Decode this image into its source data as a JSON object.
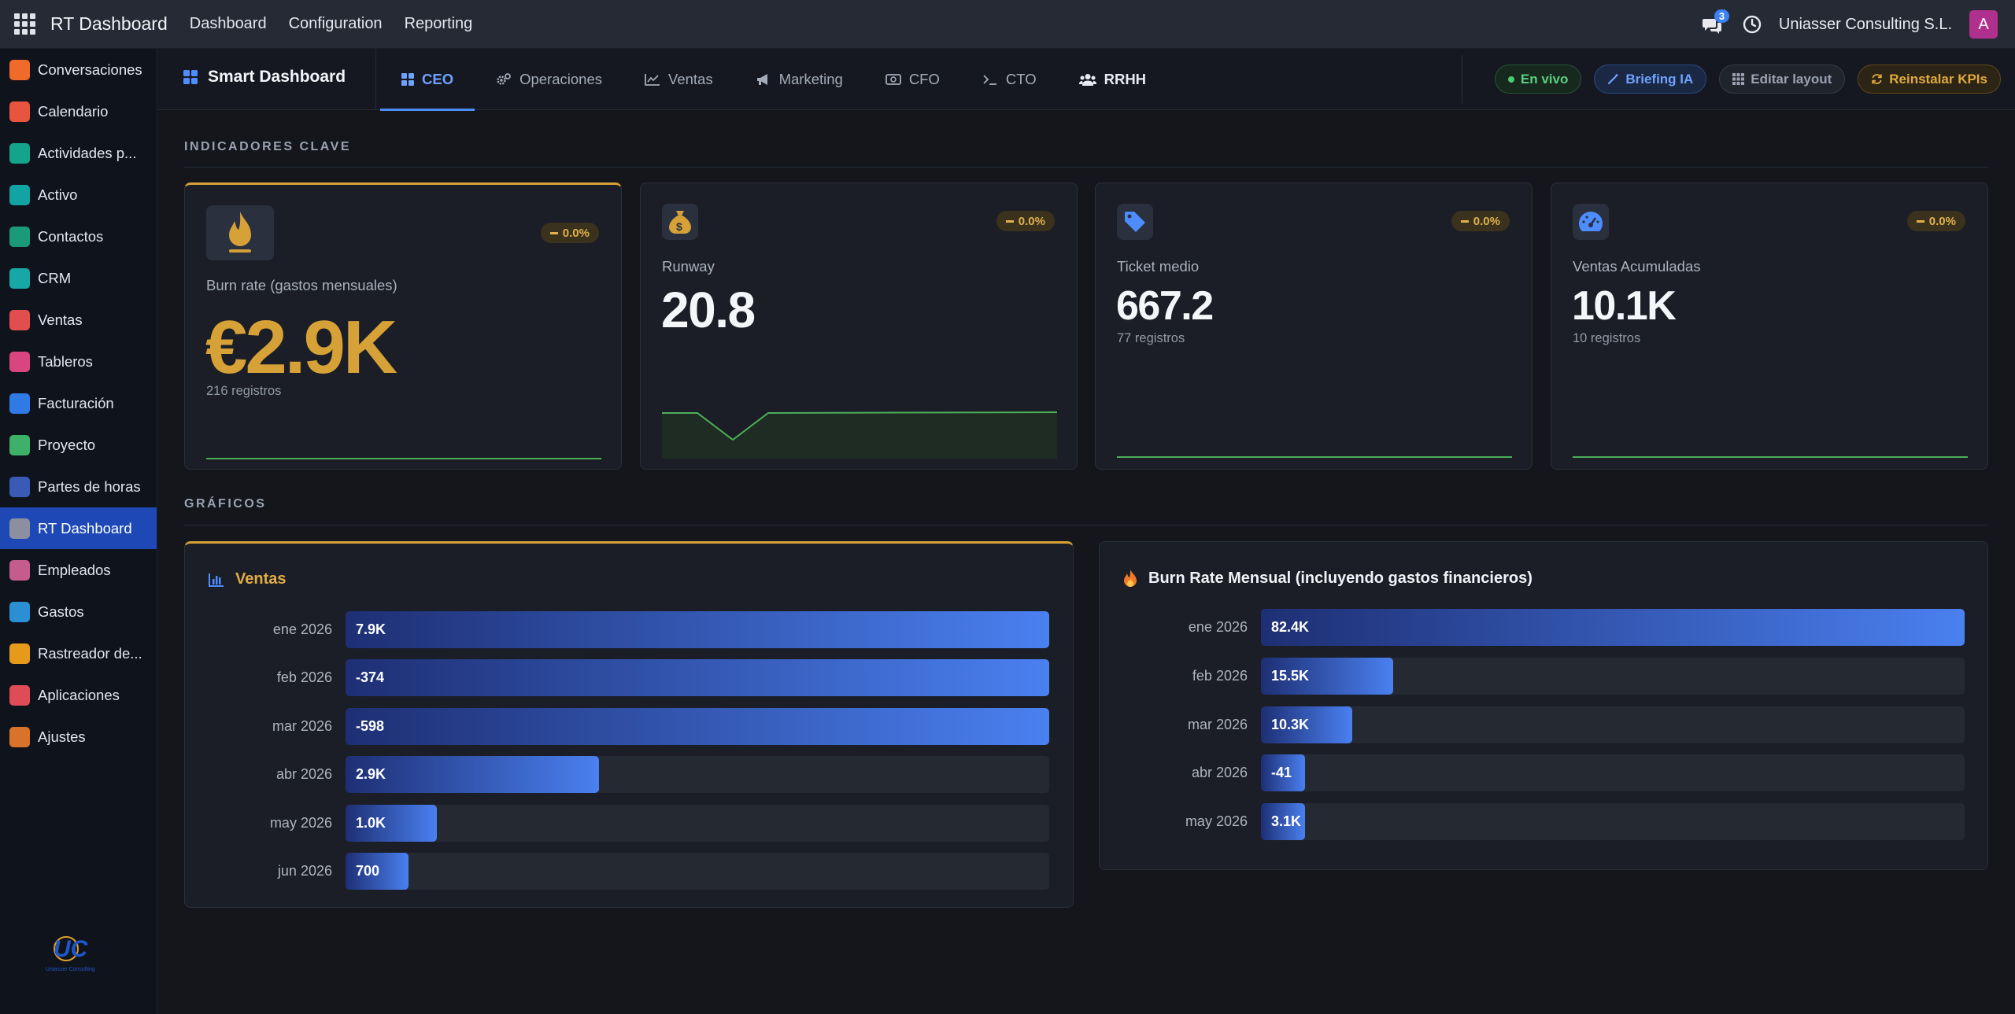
{
  "topbar": {
    "app_title": "RT Dashboard",
    "nav": [
      "Dashboard",
      "Configuration",
      "Reporting"
    ],
    "chat_count": "3",
    "company": "Uniasser Consulting S.L.",
    "avatar_letter": "A"
  },
  "sidebar": {
    "items": [
      {
        "label": "Conversaciones",
        "icon": "conversations-icon",
        "color": "#f06a2a"
      },
      {
        "label": "Calendario",
        "icon": "calendar-icon",
        "color": "#e8553f"
      },
      {
        "label": "Actividades p...",
        "icon": "activities-icon",
        "color": "#14a38b"
      },
      {
        "label": "Activo",
        "icon": "asset-icon",
        "color": "#12a3a3"
      },
      {
        "label": "Contactos",
        "icon": "contacts-icon",
        "color": "#1a9a78"
      },
      {
        "label": "CRM",
        "icon": "crm-icon",
        "color": "#17a7a7"
      },
      {
        "label": "Ventas",
        "icon": "sales-icon",
        "color": "#e24d4d"
      },
      {
        "label": "Tableros",
        "icon": "boards-icon",
        "color": "#d9457d"
      },
      {
        "label": "Facturación",
        "icon": "invoicing-icon",
        "color": "#2f7ae5"
      },
      {
        "label": "Proyecto",
        "icon": "project-icon",
        "color": "#3db16a"
      },
      {
        "label": "Partes de horas",
        "icon": "timesheets-icon",
        "color": "#3a5bb5"
      },
      {
        "label": "RT Dashboard",
        "icon": "rt-dashboard-icon",
        "color": "#8b8fa0",
        "active": true
      },
      {
        "label": "Empleados",
        "icon": "employees-icon",
        "color": "#c55c8e"
      },
      {
        "label": "Gastos",
        "icon": "expenses-icon",
        "color": "#2a8fd3"
      },
      {
        "label": "Rastreador de...",
        "icon": "tracker-icon",
        "color": "#e69a1c"
      },
      {
        "label": "Aplicaciones",
        "icon": "apps-grid-icon",
        "color": "#e04b58"
      },
      {
        "label": "Ajustes",
        "icon": "settings-icon",
        "color": "#d9722a"
      }
    ],
    "logo_text": "UC",
    "logo_caption": "Uniasser Consulting"
  },
  "header": {
    "title": "Smart Dashboard",
    "tabs": [
      {
        "label": "CEO",
        "icon": "grid-icon",
        "active": true
      },
      {
        "label": "Operaciones",
        "icon": "cogs-icon"
      },
      {
        "label": "Ventas",
        "icon": "line-chart-icon"
      },
      {
        "label": "Marketing",
        "icon": "megaphone-icon"
      },
      {
        "label": "CFO",
        "icon": "money-icon"
      },
      {
        "label": "CTO",
        "icon": "terminal-icon"
      },
      {
        "label": "RRHH",
        "icon": "users-icon",
        "bold": true
      }
    ],
    "actions": {
      "live": "En vivo",
      "briefing": "Briefing IA",
      "edit_layout": "Editar layout",
      "reinstall": "Reinstalar KPIs"
    }
  },
  "sections": {
    "kpis_title": "INDICADORES CLAVE",
    "charts_title": "GRÁFICOS"
  },
  "kpis": [
    {
      "label": "Burn rate (gastos mensuales)",
      "value": "€2.9K",
      "sub": "216 registros",
      "change": "0.0%",
      "icon": "fire-icon"
    },
    {
      "label": "Runway",
      "value": "20.8",
      "sub": "",
      "change": "0.0%",
      "icon": "money-bag-icon"
    },
    {
      "label": "Ticket medio",
      "value": "667.2",
      "sub": "77 registros",
      "change": "0.0%",
      "icon": "tag-icon"
    },
    {
      "label": "Ventas Acumuladas",
      "value": "10.1K",
      "sub": "10 registros",
      "change": "0.0%",
      "icon": "gauge-icon"
    }
  ],
  "charts": {
    "ventas": {
      "title": "Ventas",
      "rows": [
        {
          "label": "ene 2026",
          "display": "7.9K",
          "fill": 1.0
        },
        {
          "label": "feb 2026",
          "display": "-374",
          "fill": 1.0
        },
        {
          "label": "mar 2026",
          "display": "-598",
          "fill": 1.0
        },
        {
          "label": "abr 2026",
          "display": "2.9K",
          "fill": 0.36
        },
        {
          "label": "may 2026",
          "display": "1.0K",
          "fill": 0.13
        },
        {
          "label": "jun 2026",
          "display": "700",
          "fill": 0.09
        }
      ]
    },
    "burn": {
      "title": "Burn Rate Mensual (incluyendo gastos financieros)",
      "rows": [
        {
          "label": "ene 2026",
          "display": "82.4K",
          "fill": 1.0
        },
        {
          "label": "feb 2026",
          "display": "15.5K",
          "fill": 0.188
        },
        {
          "label": "mar 2026",
          "display": "10.3K",
          "fill": 0.13
        },
        {
          "label": "abr 2026",
          "display": "-41",
          "fill": 0.062
        },
        {
          "label": "may 2026",
          "display": "3.1K",
          "fill": 0.062
        }
      ]
    }
  },
  "colors": {
    "accent": "#d6a137",
    "primary": "#4d8dff",
    "bar_start": "#1e2f74",
    "bar_end": "#4a80f0",
    "spark": "#4caf58"
  }
}
